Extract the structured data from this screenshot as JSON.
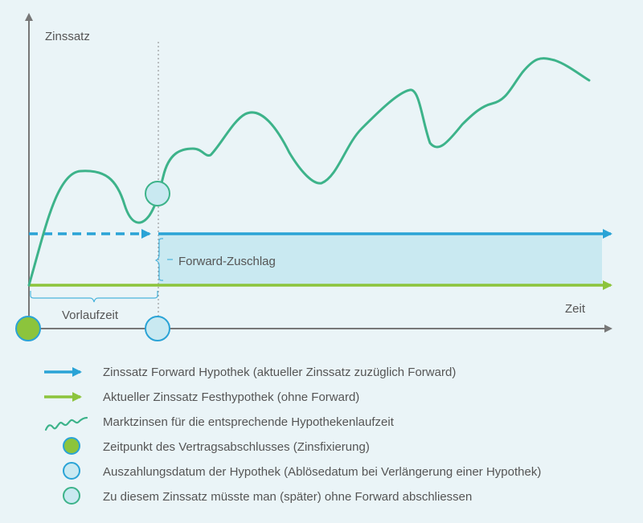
{
  "diagram": {
    "y_axis_label": "Zinssatz",
    "x_axis_label": "Zeit",
    "period_label": "Vorlaufzeit",
    "bracket_label": "Forward-Zuschlag"
  },
  "colors": {
    "forward": "#2aa3d6",
    "fixed": "#8cc43c",
    "market": "#3db38a",
    "axis": "#777777",
    "fill": "#c9e9f1"
  },
  "legend": [
    {
      "icon": "blue-arrow",
      "label": "Zinssatz Forward Hypothek (aktueller Zinssatz zuzüglich Forward)"
    },
    {
      "icon": "green-arrow",
      "label": "Aktueller Zinssatz Festhypothek (ohne Forward)"
    },
    {
      "icon": "wavy-line",
      "label": "Marktzinsen für die entsprechende Hypothekenlaufzeit"
    },
    {
      "icon": "green-circle",
      "label": "Zeitpunkt des Vertragsabschlusses (Zinsfixierung)"
    },
    {
      "icon": "blue-circle",
      "label": "Auszahlungsdatum der Hypothek (Ablösedatum bei Verlängerung einer Hypothek)"
    },
    {
      "icon": "teal-circle",
      "label": "Zu diesem Zinssatz müsste man (später) ohne Forward abschliessen"
    }
  ]
}
